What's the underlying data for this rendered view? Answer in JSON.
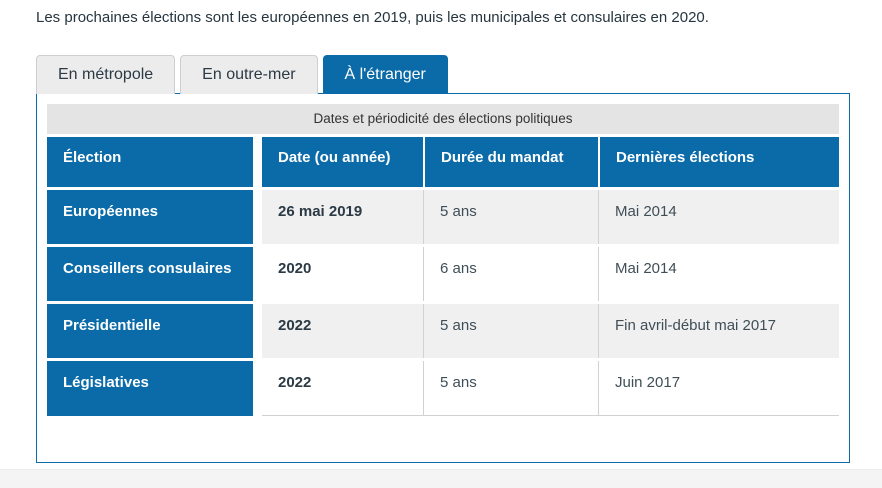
{
  "intro": "Les prochaines élections sont les européennes en 2019, puis les municipales et consulaires en 2020.",
  "tabs": [
    {
      "label": "En métropole",
      "active": false
    },
    {
      "label": "En outre-mer",
      "active": false
    },
    {
      "label": "À l'étranger",
      "active": true
    }
  ],
  "table": {
    "caption": "Dates et périodicité des élections politiques",
    "headers": [
      "Élection",
      "Date (ou année)",
      "Durée du mandat",
      "Dernières élections"
    ],
    "rows": [
      {
        "cells": [
          "Européennes",
          "26 mai 2019",
          "5 ans",
          "Mai 2014"
        ]
      },
      {
        "cells": [
          "Conseillers consulaires",
          "2020",
          "6 ans",
          "Mai 2014"
        ]
      },
      {
        "cells": [
          "Présidentielle",
          "2022",
          "5 ans",
          "Fin avril-début mai 2017"
        ]
      },
      {
        "cells": [
          "Législatives",
          "2022",
          "5 ans",
          "Juin 2017"
        ]
      }
    ]
  },
  "colors": {
    "accent_blue": "#0b6ba8",
    "tab_inactive_bg": "#ececec",
    "caption_bg": "#e4e4e4",
    "row_alternate_bg": "#f0f0f0",
    "body_text": "#3f4e57"
  }
}
